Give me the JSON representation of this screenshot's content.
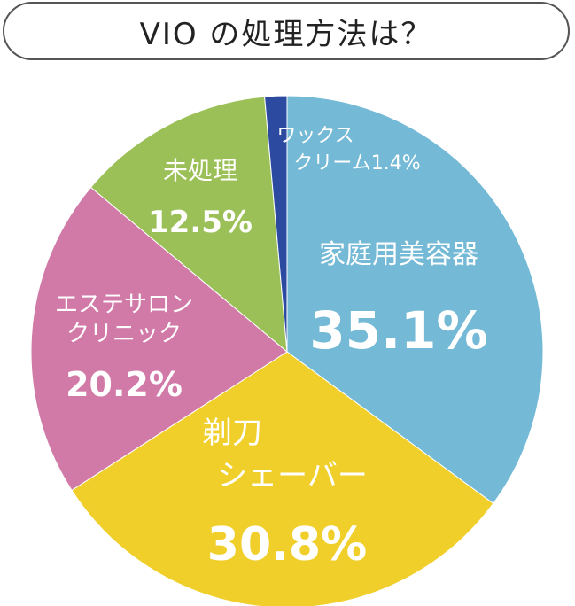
{
  "chart_data": {
    "type": "pie",
    "title": "VIO の処理方法は？",
    "start_angle_deg": 0,
    "direction": "clockwise",
    "slices": [
      {
        "label_lines": [
          "家庭用美容器"
        ],
        "value": 35.1,
        "value_label": "35.1%",
        "color": "#74b9d5"
      },
      {
        "label_lines": [
          "剃刀",
          "シェーバー"
        ],
        "value": 30.8,
        "value_label": "30.8%",
        "color": "#f0cf2b"
      },
      {
        "label_lines": [
          "エステサロン",
          "クリニック"
        ],
        "value": 20.2,
        "value_label": "20.2%",
        "color": "#d17aa8"
      },
      {
        "label_lines": [
          "未処理"
        ],
        "value": 12.5,
        "value_label": "12.5%",
        "color": "#9cc058"
      },
      {
        "label_lines": [
          "ワックス",
          "クリーム1.4%"
        ],
        "value": 1.4,
        "value_label": "",
        "color": "#2b4aa0"
      }
    ]
  }
}
